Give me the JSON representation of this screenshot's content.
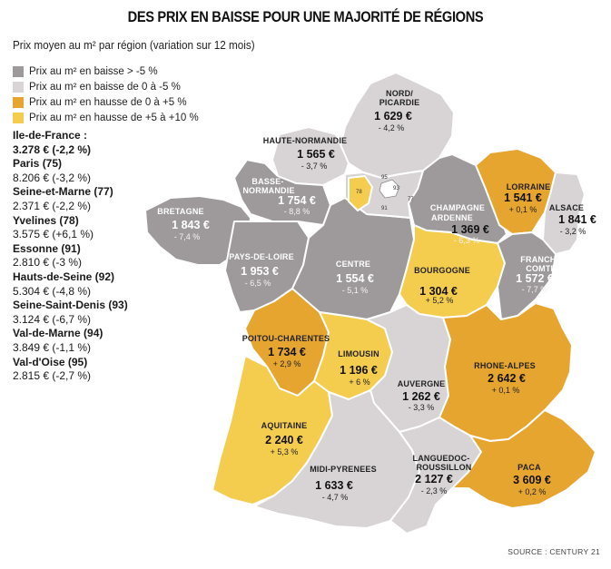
{
  "title": "DES PRIX EN BAISSE POUR UNE MAJORITÉ DE RÉGIONS",
  "subtitle": "Prix moyen au m² par région (variation sur 12 mois)",
  "colors": {
    "baisse_forte": "#9e9a9b",
    "baisse": "#d8d4d5",
    "hausse": "#e6a52f",
    "hausse_forte": "#f4cd4f"
  },
  "legend": [
    {
      "label": "Prix au m² en baisse > -5 %",
      "color": "#9e9a9b"
    },
    {
      "label": "Prix au m² en baisse de 0 à -5 %",
      "color": "#d8d4d5"
    },
    {
      "label": "Prix au m² en hausse de 0 à +5 %",
      "color": "#e6a52f"
    },
    {
      "label": "Prix au m² en hausse de +5 à +10 %",
      "color": "#f4cd4f"
    }
  ],
  "ile_de_france": {
    "name": "Ile-de-France :",
    "value": "3.278 € (-2,2 %)",
    "departments": [
      {
        "name": "Paris (75)",
        "value": "8.206 € (-3,2 %)"
      },
      {
        "name": "Seine-et-Marne (77)",
        "value": "2.371 € (-2,2 %)"
      },
      {
        "name": "Yvelines (78)",
        "value": "3.575 € (+6,1 %)"
      },
      {
        "name": "Essonne (91)",
        "value": "2.810 € (-3 %)"
      },
      {
        "name": "Hauts-de-Seine (92)",
        "value": "5.304 € (-4,8 %)"
      },
      {
        "name": "Seine-Saint-Denis (93)",
        "value": "3.124 € (-6,7 %)"
      },
      {
        "name": "Val-de-Marne (94)",
        "value": "3.849 € (-1,1 %)"
      },
      {
        "name": "Val-d'Oise (95)",
        "value": "2.815 € (-2,7 %)"
      }
    ]
  },
  "regions": {
    "nord": {
      "name1": "NORD/",
      "name2": "PICARDIE",
      "price": "1 629 €",
      "variation": "- 4,2 %"
    },
    "haute_normandie": {
      "name1": "HAUTE-NORMANDIE",
      "price": "1 565 €",
      "variation": "- 3,7 %"
    },
    "basse_normandie": {
      "name1": "BASSE-",
      "name2": "NORMANDIE",
      "price": "1 754 €",
      "variation": "- 8,8 %"
    },
    "bretagne": {
      "name1": "BRETAGNE",
      "price": "1 843 €",
      "variation": "- 7,4 %"
    },
    "pays_de_loire": {
      "name1": "PAYS-DE-LOIRE",
      "price": "1 953 €",
      "variation": "- 6,5 %"
    },
    "centre": {
      "name1": "CENTRE",
      "price": "1 554 €",
      "variation": "- 5,1 %"
    },
    "champagne": {
      "name1": "CHAMPAGNE",
      "name2": "ARDENNE",
      "price": "1 369 €",
      "variation": "- 6,3 %"
    },
    "lorraine": {
      "name1": "LORRAINE",
      "price": "1 541 €",
      "variation": "+ 0,1 %"
    },
    "alsace": {
      "name1": "ALSACE",
      "price": "1 841 €",
      "variation": "- 3,2 %"
    },
    "bourgogne": {
      "name1": "BOURGOGNE",
      "price": "1 304 €",
      "variation": "+ 5,2 %"
    },
    "franche_comte": {
      "name1": "FRANCHE",
      "name2": "COMTÉ",
      "price": "1 572 €",
      "variation": "- 7,7 %"
    },
    "poitou": {
      "name1": "POITOU-CHARENTES",
      "price": "1 734 €",
      "variation": "+ 2,9 %"
    },
    "limousin": {
      "name1": "LIMOUSIN",
      "price": "1 196 €",
      "variation": "+ 6 %"
    },
    "auvergne": {
      "name1": "AUVERGNE",
      "price": "1 262 €",
      "variation": "- 3,3 %"
    },
    "rhone_alpes": {
      "name1": "RHONE-ALPES",
      "price": "2 642 €",
      "variation": "+ 0,1 %"
    },
    "aquitaine": {
      "name1": "AQUITAINE",
      "price": "2 240 €",
      "variation": "+ 5,3 %"
    },
    "midi_pyrenees": {
      "name1": "MIDI-PYRENEES",
      "price": "1 633 €",
      "variation": "- 4,7 %"
    },
    "languedoc": {
      "name1": "LANGUEDOC-",
      "name2": "ROUSSILLON",
      "price": "2 127 €",
      "variation": "- 2,3 %"
    },
    "paca": {
      "name1": "PACA",
      "price": "3 609 €",
      "variation": "+ 0,2 %"
    }
  },
  "idf_map_labels": {
    "d95": "95",
    "d93": "93",
    "d78": "78",
    "d91": "91",
    "d77": "77"
  },
  "source": "SOURCE : CENTURY 21"
}
